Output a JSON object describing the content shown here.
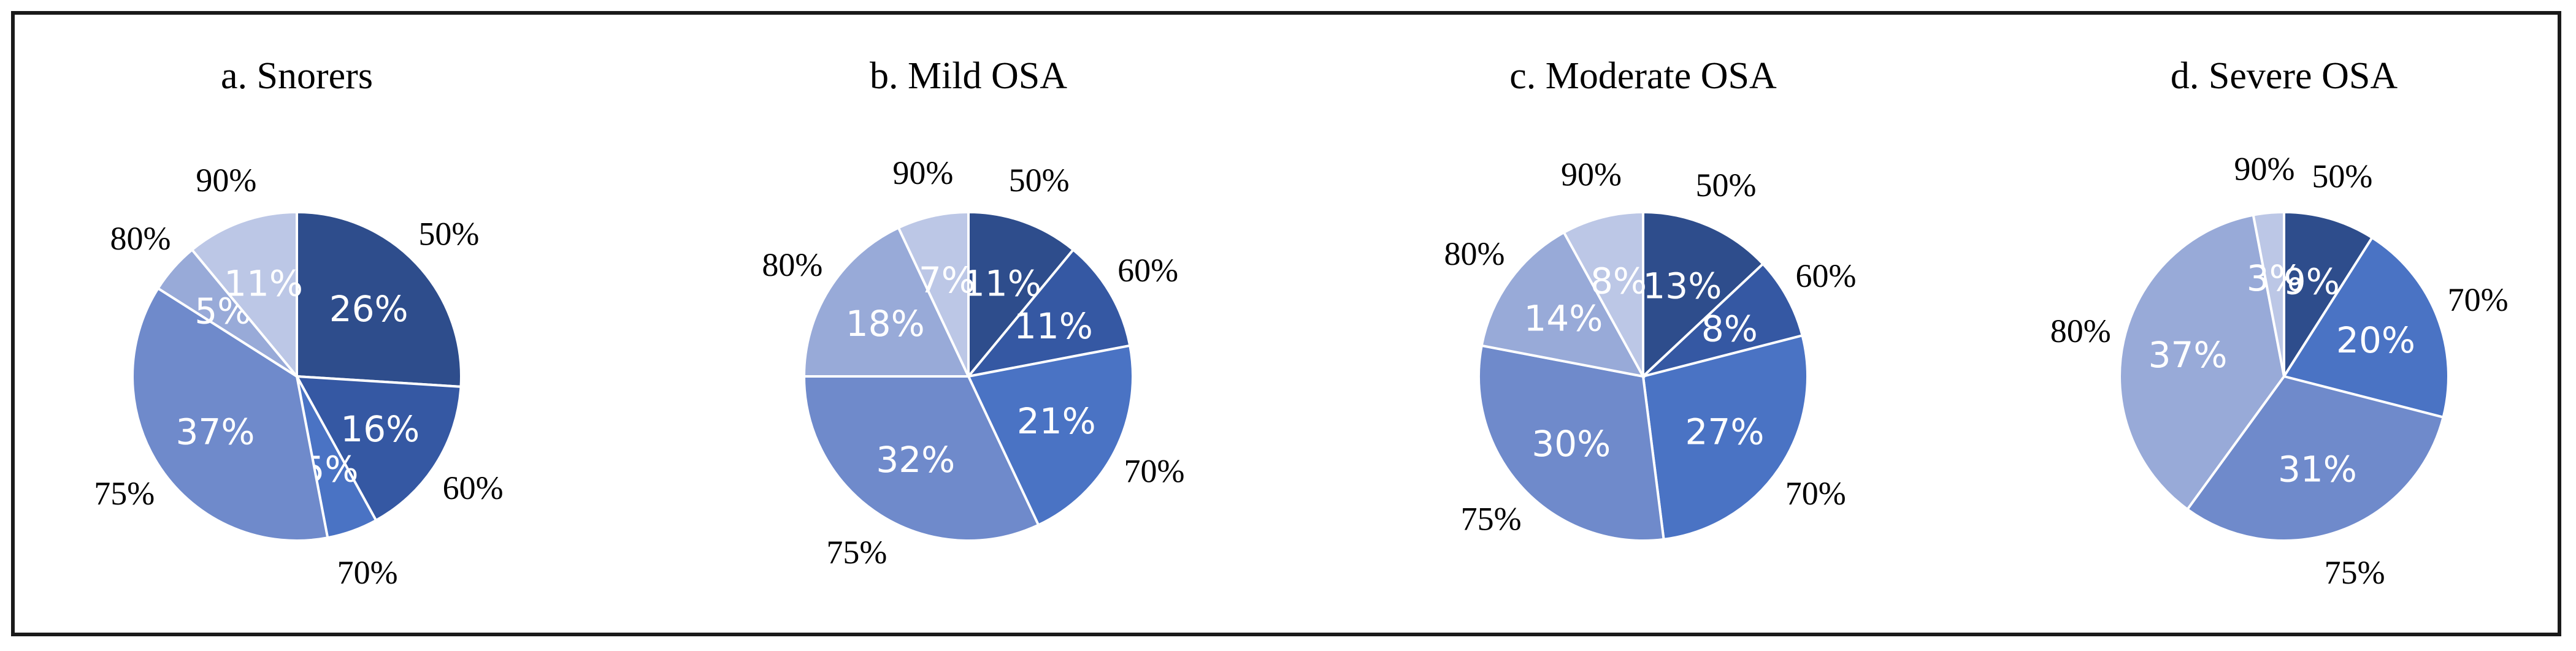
{
  "chart_data": [
    {
      "type": "pie",
      "title": "a. Snorers",
      "slices": [
        {
          "label": "50%",
          "value": 26,
          "value_label": "26%",
          "color": "#2E4D8C"
        },
        {
          "label": "60%",
          "value": 16,
          "value_label": "16%",
          "color": "#3558A3"
        },
        {
          "label": "70%",
          "value": 5,
          "value_label": "5%",
          "color": "#4A73C4"
        },
        {
          "label": "75%",
          "value": 37,
          "value_label": "37%",
          "color": "#6F8ACB"
        },
        {
          "label": "80%",
          "value": 5,
          "value_label": "5%",
          "color": "#98AAD8"
        },
        {
          "label": "90%",
          "value": 11,
          "value_label": "11%",
          "color": "#BCC7E6"
        }
      ]
    },
    {
      "type": "pie",
      "title": "b. Mild OSA",
      "slices": [
        {
          "label": "50%",
          "value": 11,
          "value_label": "11%",
          "color": "#2E4D8C"
        },
        {
          "label": "60%",
          "value": 11,
          "value_label": "11%",
          "color": "#3558A3"
        },
        {
          "label": "70%",
          "value": 21,
          "value_label": "21%",
          "color": "#4A73C4"
        },
        {
          "label": "75%",
          "value": 32,
          "value_label": "32%",
          "color": "#6F8ACB"
        },
        {
          "label": "80%",
          "value": 18,
          "value_label": "18%",
          "color": "#98AAD8"
        },
        {
          "label": "90%",
          "value": 7,
          "value_label": "7%",
          "color": "#BCC7E6"
        }
      ]
    },
    {
      "type": "pie",
      "title": "c. Moderate OSA",
      "slices": [
        {
          "label": "50%",
          "value": 13,
          "value_label": "13%",
          "color": "#2E4D8C"
        },
        {
          "label": "60%",
          "value": 8,
          "value_label": "8%",
          "color": "#3558A3"
        },
        {
          "label": "70%",
          "value": 27,
          "value_label": "27%",
          "color": "#4A73C4"
        },
        {
          "label": "75%",
          "value": 30,
          "value_label": "30%",
          "color": "#6F8ACB"
        },
        {
          "label": "80%",
          "value": 14,
          "value_label": "14%",
          "color": "#98AAD8"
        },
        {
          "label": "90%",
          "value": 8,
          "value_label": "8%",
          "color": "#BCC7E6"
        }
      ]
    },
    {
      "type": "pie",
      "title": "d. Severe OSA",
      "slices": [
        {
          "label": "50%",
          "value": 9,
          "value_label": "9%",
          "color": "#2E4D8C"
        },
        {
          "label": "70%",
          "value": 20,
          "value_label": "20%",
          "color": "#4A73C4"
        },
        {
          "label": "75%",
          "value": 31,
          "value_label": "31%",
          "color": "#6F8ACB"
        },
        {
          "label": "80%",
          "value": 37,
          "value_label": "37%",
          "color": "#98AAD8"
        },
        {
          "label": "90%",
          "value": 3,
          "value_label": "3%",
          "color": "#BCC7E6"
        }
      ]
    }
  ]
}
